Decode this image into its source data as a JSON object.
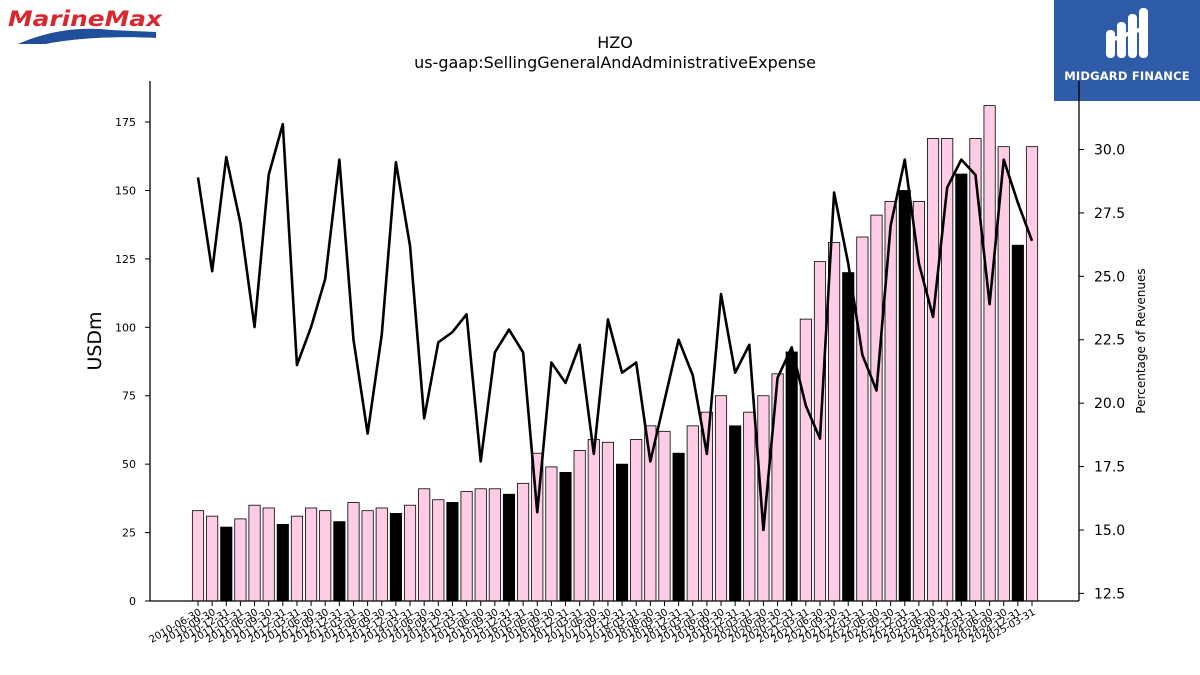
{
  "logos": {
    "left": "MarineMax",
    "right": "MIDGARD FINANCE"
  },
  "chart_data": {
    "type": "bar",
    "title": "HZO",
    "subtitle": "us-gaap:SellingGeneralAndAdministrativeExpense",
    "ylabel": "USDm",
    "y2label": "Percentage of Revenues",
    "ylim": [
      0,
      190
    ],
    "y2lim": [
      12.2,
      32.7
    ],
    "yticks": [
      0,
      25,
      50,
      75,
      100,
      125,
      150,
      175
    ],
    "y2ticks": [
      12.5,
      15.0,
      17.5,
      20.0,
      22.5,
      25.0,
      27.5,
      30.0
    ],
    "grid": false,
    "colors": {
      "bar": "#ffcce6",
      "bar_fy": "#000000",
      "line": "#000000"
    },
    "categories": [
      "2010-06-30",
      "2010-09-30",
      "2010-12-31",
      "2011-03-31",
      "2011-06-30",
      "2011-09-30",
      "2011-12-31",
      "2012-03-31",
      "2012-06-30",
      "2012-09-30",
      "2012-12-31",
      "2013-03-31",
      "2013-06-30",
      "2013-09-30",
      "2013-12-31",
      "2014-03-31",
      "2014-06-30",
      "2014-09-30",
      "2014-12-31",
      "2015-03-31",
      "2015-06-30",
      "2015-09-30",
      "2015-12-31",
      "2016-03-31",
      "2016-06-30",
      "2016-09-30",
      "2016-12-31",
      "2017-03-31",
      "2017-06-30",
      "2017-09-30",
      "2017-12-31",
      "2018-03-31",
      "2018-06-30",
      "2018-09-30",
      "2018-12-31",
      "2019-03-31",
      "2019-06-30",
      "2019-09-30",
      "2019-12-31",
      "2020-03-31",
      "2020-06-30",
      "2020-09-30",
      "2020-12-31",
      "2021-03-31",
      "2021-06-30",
      "2021-09-30",
      "2021-12-31",
      "2022-03-31",
      "2022-06-30",
      "2022-09-30",
      "2022-12-31",
      "2023-03-31",
      "2023-06-30",
      "2023-09-30",
      "2023-12-31",
      "2024-03-31",
      "2024-06-30",
      "2024-09-30",
      "2024-12-31",
      "2025-03-31"
    ],
    "series": [
      {
        "values": [
          33,
          31,
          27,
          30,
          35,
          34,
          28,
          31,
          34,
          33,
          29,
          36,
          33,
          34,
          32,
          35,
          41,
          37,
          36,
          40,
          41,
          41,
          39,
          43,
          54,
          49,
          47,
          55,
          59,
          58,
          50,
          59,
          64,
          62,
          54,
          64,
          69,
          75,
          64,
          69,
          75,
          83,
          91,
          103,
          124,
          131,
          120,
          133,
          141,
          146,
          150,
          146,
          169,
          169,
          156,
          169,
          181,
          166,
          130,
          166
        ]
      },
      {
        "axis": "right",
        "values": [
          28.9,
          25.2,
          29.7,
          27.1,
          23.0,
          29.0,
          31.0,
          21.5,
          23.0,
          24.9,
          29.6,
          22.5,
          18.8,
          22.7,
          29.5,
          26.2,
          19.4,
          22.4,
          22.8,
          23.5,
          17.7,
          22.0,
          22.9,
          22.0,
          15.7,
          21.6,
          20.8,
          22.3,
          18.0,
          23.3,
          21.2,
          21.6,
          17.7,
          20.1,
          22.5,
          21.1,
          18.0,
          24.3,
          21.2,
          22.3,
          15.0,
          21.0,
          22.2,
          19.9,
          18.6,
          28.3,
          25.5,
          21.9,
          20.5,
          27.0,
          29.6,
          25.5,
          23.4,
          28.5,
          29.6,
          29.0,
          23.9,
          29.6,
          27.9,
          26.4
        ]
      }
    ],
    "fy_indices": [
      2,
      6,
      10,
      14,
      18,
      22,
      26,
      30,
      34,
      38,
      42,
      46,
      50,
      54,
      58
    ]
  }
}
